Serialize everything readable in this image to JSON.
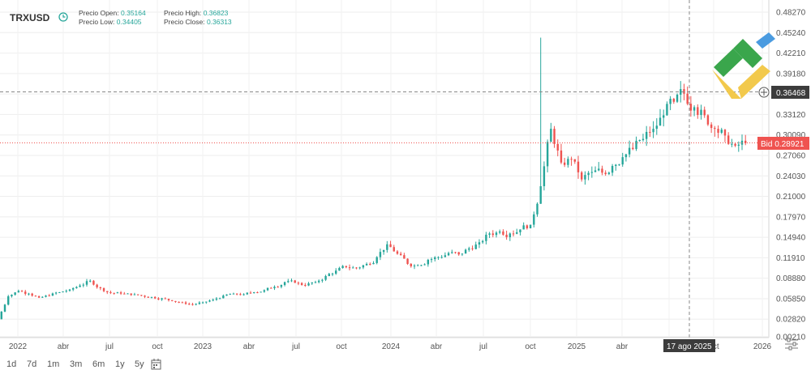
{
  "header": {
    "symbol": "TRXUSD",
    "open_label": "Precio Open:",
    "open_value": "0.35164",
    "low_label": "Precio Low:",
    "low_value": "0.34405",
    "high_label": "Precio High:",
    "high_value": "0.36823",
    "close_label": "Precio Close:",
    "close_value": "0.36313"
  },
  "crosshair": {
    "price_label": "0.36468",
    "date_label": "17 ago 2025"
  },
  "bid": {
    "label": "Bid 0.28921"
  },
  "range_buttons": [
    "1d",
    "7d",
    "1m",
    "3m",
    "6m",
    "1y",
    "5y"
  ],
  "colors": {
    "up": "#26a69a",
    "down": "#ef5350",
    "bid": "#ef5350",
    "crosshair": "#333333"
  },
  "chart_data": {
    "type": "candlestick",
    "y_ticks": [
      "0.48270",
      "0.45240",
      "0.42210",
      "0.39180",
      "0.36150",
      "0.33120",
      "0.30090",
      "0.27060",
      "0.24030",
      "0.21000",
      "0.17970",
      "0.14940",
      "0.11910",
      "0.08880",
      "0.05850",
      "0.02820",
      "0.00210"
    ],
    "x_ticks": [
      "2022",
      "abr",
      "jul",
      "oct",
      "2023",
      "abr",
      "jul",
      "oct",
      "2024",
      "abr",
      "jul",
      "oct",
      "2025",
      "abr",
      "jul",
      "oct",
      "2026"
    ],
    "grid": true,
    "series_close": [
      0.062,
      0.07,
      0.066,
      0.06,
      0.063,
      0.068,
      0.072,
      0.078,
      0.085,
      0.074,
      0.067,
      0.066,
      0.064,
      0.063,
      0.061,
      0.059,
      0.055,
      0.053,
      0.05,
      0.053,
      0.057,
      0.063,
      0.066,
      0.065,
      0.068,
      0.071,
      0.076,
      0.083,
      0.082,
      0.078,
      0.083,
      0.092,
      0.1,
      0.105,
      0.104,
      0.11,
      0.12,
      0.139,
      0.125,
      0.11,
      0.108,
      0.116,
      0.12,
      0.126,
      0.124,
      0.133,
      0.142,
      0.155,
      0.158,
      0.155,
      0.161,
      0.168,
      0.225,
      0.31,
      0.26,
      0.265,
      0.235,
      0.246,
      0.245,
      0.255,
      0.268,
      0.28,
      0.295,
      0.31,
      0.33,
      0.35,
      0.362,
      0.342,
      0.33,
      0.31,
      0.3,
      0.285,
      0.289
    ]
  }
}
